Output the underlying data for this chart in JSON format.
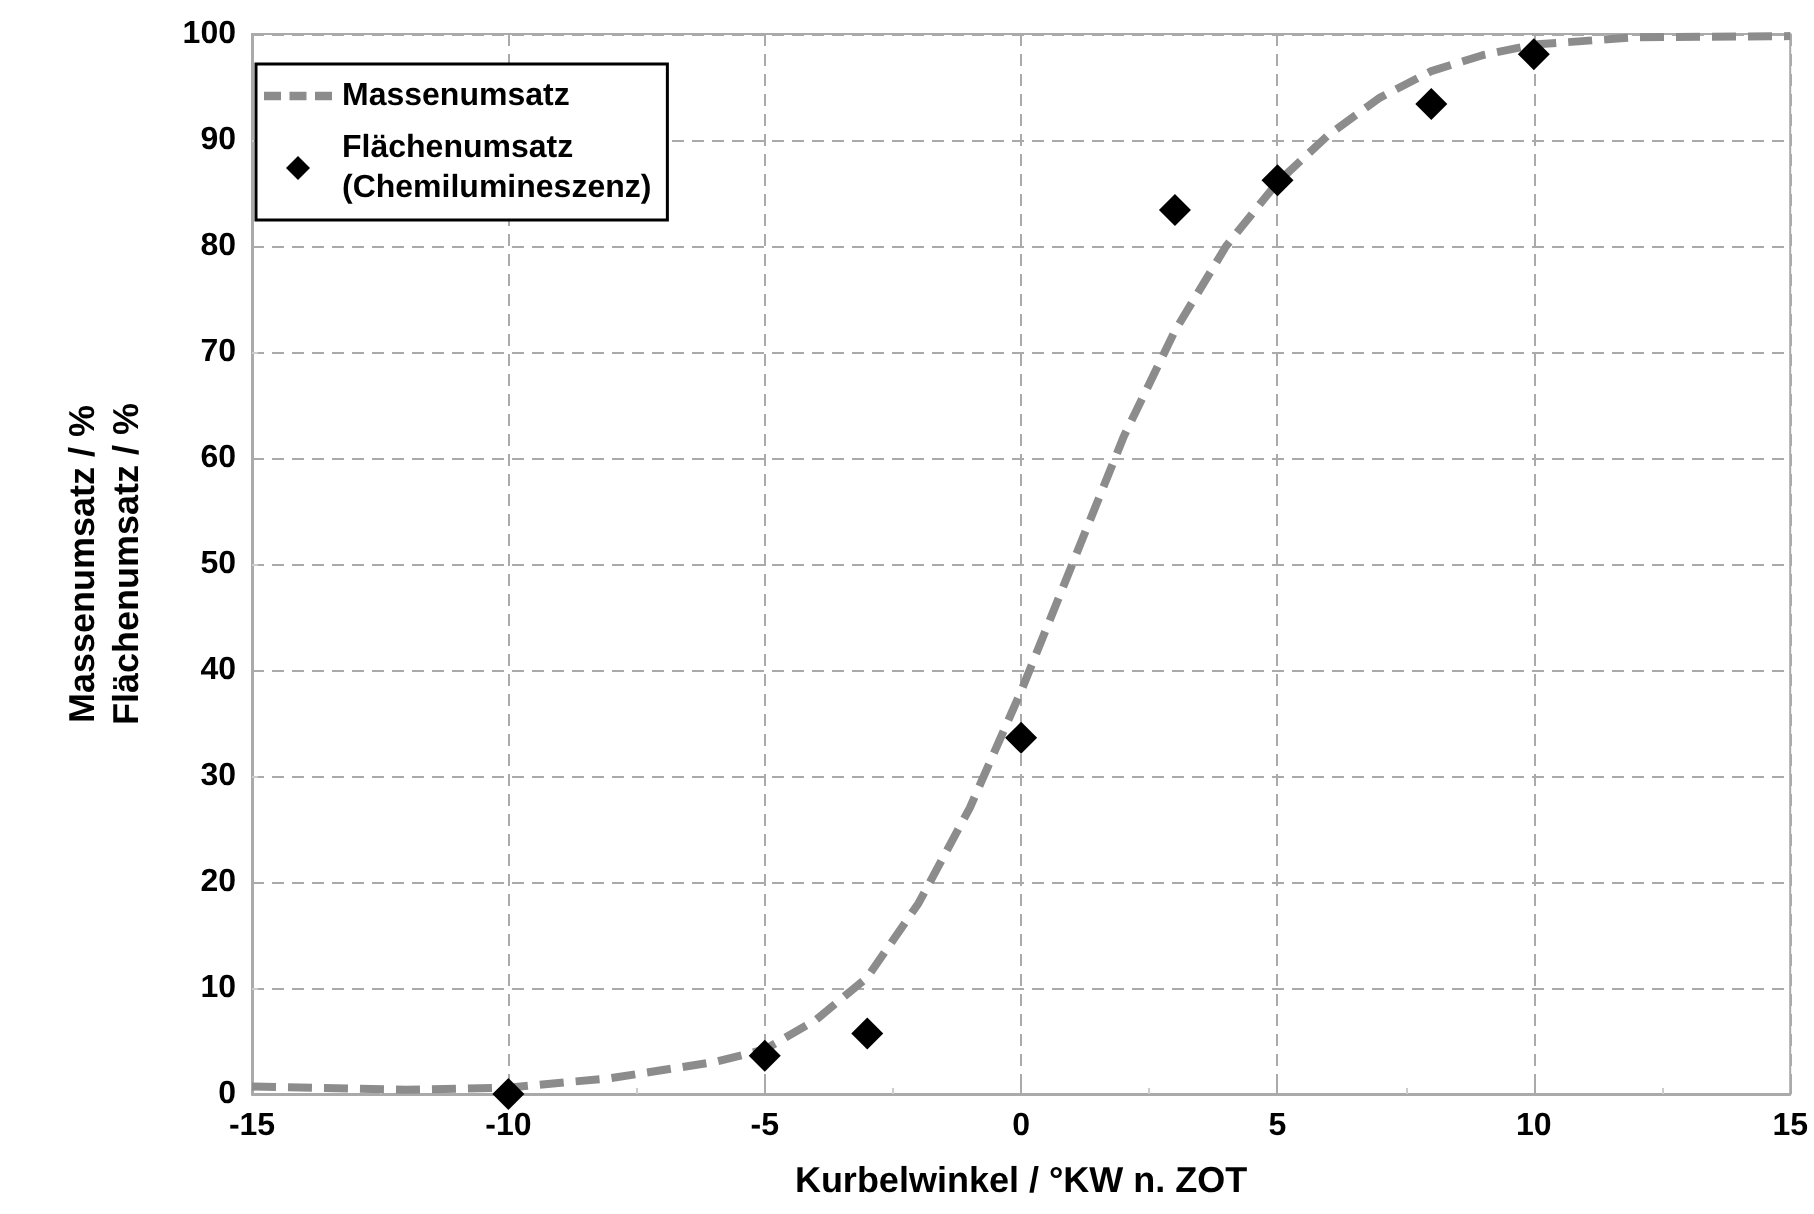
{
  "chart_data": {
    "type": "line",
    "xlabel": "Kurbelwinkel / °KW n. ZOT",
    "ylabel": "Massenumsatz / %\nFlächenumsatz / %",
    "xlim": [
      -15,
      15
    ],
    "xticks": [
      -15,
      -10,
      -5,
      0,
      5,
      10,
      15
    ],
    "ylim": [
      0,
      100
    ],
    "yticks": [
      0,
      10,
      20,
      30,
      40,
      50,
      60,
      70,
      80,
      90,
      100
    ],
    "grid": true,
    "legend": "top left",
    "series": [
      {
        "name": "Massenumsatz",
        "color": "#8c8c8c",
        "line_style": "dashed",
        "marker": "none",
        "x": [
          -15,
          -12,
          -10,
          -8,
          -6,
          -5,
          -4,
          -3,
          -2,
          -1,
          0,
          1,
          2,
          3,
          4,
          5,
          6,
          7,
          8,
          9,
          10,
          12,
          15
        ],
        "values": [
          0.7,
          0.4,
          0.6,
          1.5,
          3,
          4.2,
          7,
          11,
          18,
          27,
          38,
          50,
          62,
          72,
          80,
          86,
          90.5,
          94,
          96.5,
          98,
          99,
          99.7,
          99.8
        ]
      },
      {
        "name": "Flächenumsatz\n(Chemilumineszenz)",
        "type": "scatter",
        "color": "#000000",
        "marker": "diamond",
        "x": [
          -10,
          -5,
          -3,
          0,
          3,
          5,
          8,
          10
        ],
        "values": [
          0,
          3.6,
          5.7,
          33.6,
          83.4,
          86.2,
          93.4,
          98.1
        ]
      }
    ]
  }
}
